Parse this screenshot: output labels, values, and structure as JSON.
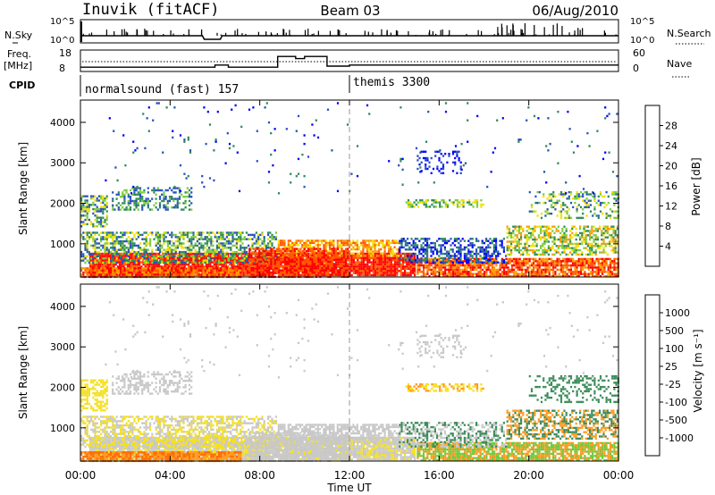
{
  "header": {
    "station": "Inuvik (fitACF)",
    "beam": "Beam 03",
    "date": "06/Aug/2010"
  },
  "summary": {
    "nsky_label": "N.Sky",
    "nsky_ticks": [
      "10^5",
      "10^0"
    ],
    "nsearch_label": "N.Search",
    "nsearch_ticks": [
      "10^5",
      "10^0"
    ],
    "freq_label": "Freq.",
    "freq_unit": "[MHz]",
    "freq_ticks": [
      "18",
      "8"
    ],
    "nave_label": "Nave",
    "nave_ticks": [
      "60",
      "0"
    ],
    "cpid_label": "CPID",
    "cpid_segments": [
      {
        "name": "normalsound (fast) 157",
        "start_hour": 0,
        "end_hour": 12
      },
      {
        "name": "themis 3300",
        "start_hour": 12,
        "end_hour": 24
      }
    ],
    "freq_steps": [
      {
        "start": 0,
        "end": 6,
        "value": 10
      },
      {
        "start": 6,
        "end": 6.6,
        "value": 11
      },
      {
        "start": 6.6,
        "end": 8.8,
        "value": 10
      },
      {
        "start": 8.8,
        "end": 9.6,
        "value": 15
      },
      {
        "start": 9.6,
        "end": 10,
        "value": 14
      },
      {
        "start": 10,
        "end": 11,
        "value": 15
      },
      {
        "start": 11,
        "end": 12,
        "value": 10.5
      },
      {
        "start": 12,
        "end": 24,
        "value": 11
      }
    ]
  },
  "x_axis": {
    "label": "Time UT",
    "ticks": [
      "00:00",
      "04:00",
      "08:00",
      "12:00",
      "16:00",
      "20:00",
      "00:00"
    ]
  },
  "power_panel": {
    "ylabel": "Slant Range [km]",
    "yticks": [
      "4000",
      "3000",
      "2000",
      "1000"
    ],
    "colorbar_label": "Power [dB]",
    "colorbar_ticks": [
      "28",
      "24",
      "20",
      "16",
      "12",
      "8",
      "4"
    ],
    "colors": [
      "#0000ff",
      "#2a52be",
      "#2e8b57",
      "#7ccd3c",
      "#f0e000",
      "#ff9a00",
      "#ff5a00",
      "#ff0000"
    ]
  },
  "velocity_panel": {
    "ylabel": "Slant Range [km]",
    "yticks": [
      "4000",
      "3000",
      "2000",
      "1000"
    ],
    "colorbar_label": "Velocity [m s⁻¹]",
    "colorbar_ticks": [
      "1000",
      "500",
      "100",
      "25",
      "-25",
      "-100",
      "-500",
      "-1000"
    ],
    "colors": [
      "#1e3ca8",
      "#3a70c0",
      "#3c8c5a",
      "#6ccc3c",
      "#c8c8c8",
      "#f5e020",
      "#ff9a20",
      "#ff6a00",
      "#ff0000"
    ]
  },
  "chart_data": {
    "type": "heatmap",
    "title": "Inuvik (fitACF) Beam 03 06/Aug/2010",
    "xlabel": "Time UT",
    "ylabel": "Slant Range [km]",
    "xlim_hours": [
      0,
      24
    ],
    "ylim_km": [
      180,
      4550
    ],
    "grid": false,
    "series": [
      {
        "name": "Power [dB]",
        "range": [
          0,
          32
        ]
      },
      {
        "name": "Velocity [m s⁻¹]",
        "range": [
          -1000,
          1000
        ]
      }
    ]
  }
}
